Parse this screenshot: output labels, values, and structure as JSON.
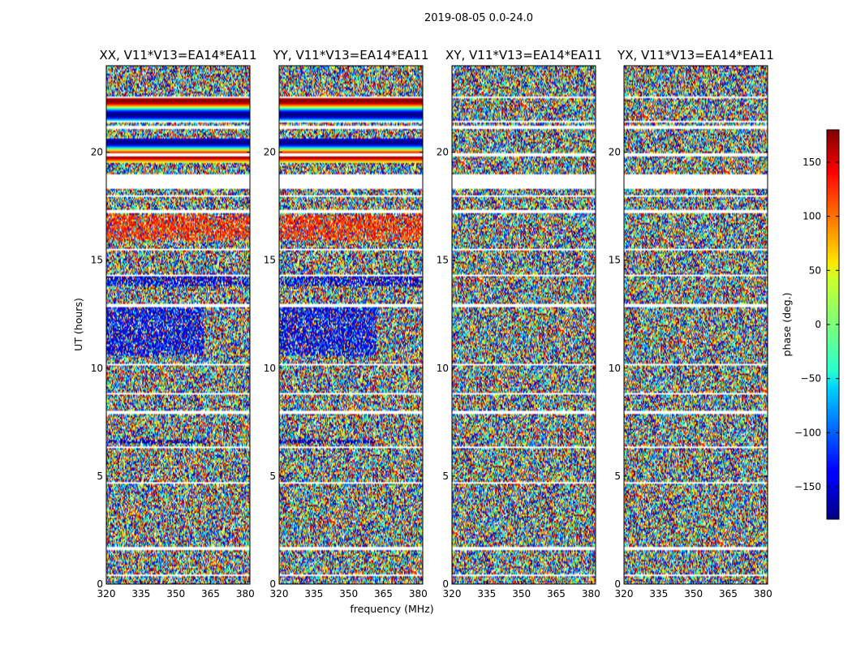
{
  "chart_data": {
    "type": "heatmap",
    "suptitle": "2019-08-05 0.0-24.0",
    "xlabel": "frequency (MHz)",
    "ylabel": "UT (hours)",
    "xlim": [
      320,
      382
    ],
    "ylim": [
      0,
      24
    ],
    "xticks": [
      320,
      335,
      350,
      365,
      380
    ],
    "yticks": [
      0,
      5,
      10,
      15,
      20
    ],
    "colorbar": {
      "label": "phase (deg.)",
      "range": [
        -180,
        180
      ],
      "ticks": [
        150,
        100,
        50,
        0,
        -50,
        -100,
        -150
      ],
      "tick_labels": [
        "150",
        "100",
        "50",
        "0",
        "−50",
        "−100",
        "−150"
      ],
      "colormap": "jet"
    },
    "panels": [
      {
        "title": "XX, V11*V13=EA14*EA11",
        "pol": "XX"
      },
      {
        "title": "YY, V11*V13=EA14*EA11",
        "pol": "YY"
      },
      {
        "title": "XY, V11*V13=EA14*EA11",
        "pol": "XY"
      },
      {
        "title": "YX, V11*V13=EA14*EA11",
        "pol": "YX"
      }
    ],
    "flagged_bands_hours": [
      [
        0.38,
        0.46
      ],
      [
        1.6,
        1.72
      ],
      [
        4.65,
        4.72
      ],
      [
        6.28,
        6.36
      ],
      [
        7.9,
        8.0
      ],
      [
        8.8,
        8.88
      ],
      [
        10.12,
        10.22
      ],
      [
        12.82,
        12.95
      ],
      [
        14.28,
        14.36
      ],
      [
        15.42,
        15.5
      ],
      [
        17.2,
        17.32
      ],
      [
        17.95,
        18.02
      ],
      [
        18.3,
        18.95
      ],
      [
        19.82,
        19.92
      ],
      [
        21.08,
        21.2
      ],
      [
        21.35,
        21.42
      ],
      [
        22.48,
        22.55
      ]
    ],
    "coherent_bands_hours": [
      [
        21.48,
        22.5
      ],
      [
        19.5,
        20.6
      ]
    ],
    "structured_regions": [
      {
        "pols": [
          "XX",
          "YY"
        ],
        "t": [
          10.6,
          12.8
        ],
        "f_end": 362,
        "phase_center": -140
      },
      {
        "pols": [
          "XX",
          "YY"
        ],
        "t": [
          13.8,
          14.3
        ],
        "f_end": 382,
        "phase_center": -150
      },
      {
        "pols": [
          "XX",
          "YY"
        ],
        "t": [
          15.9,
          17.1
        ],
        "f_end": 382,
        "phase_center": 120
      },
      {
        "pols": [
          "XX",
          "YY"
        ],
        "t": [
          6.5,
          6.7
        ],
        "f_end": 362,
        "phase_center": -165
      }
    ]
  }
}
